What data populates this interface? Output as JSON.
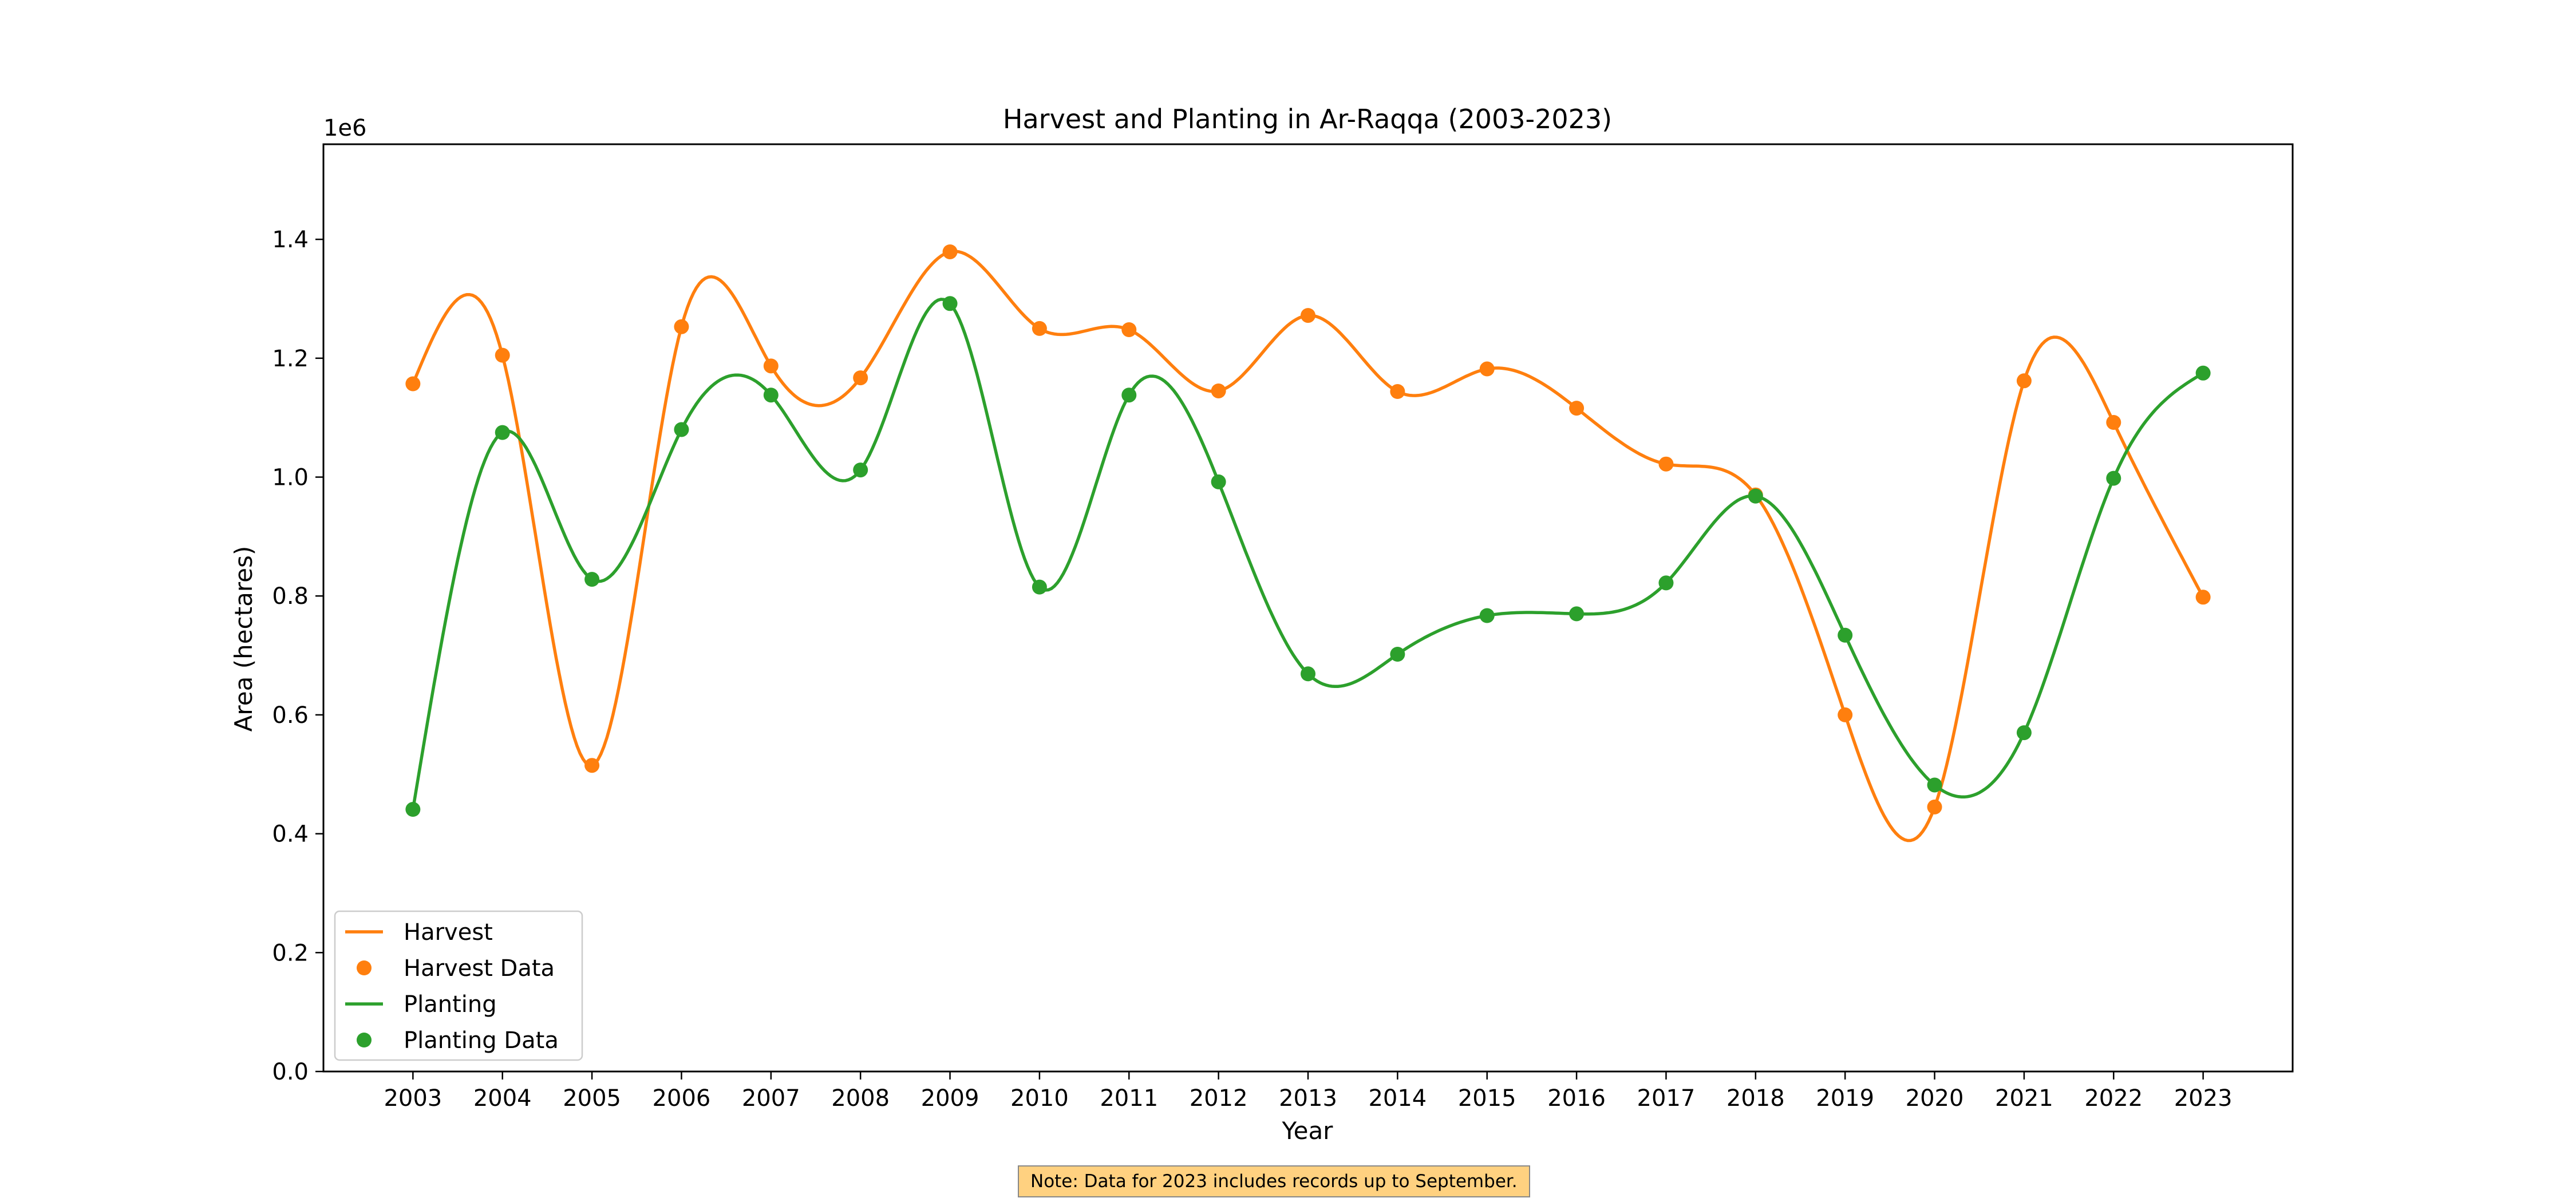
{
  "chart_data": {
    "type": "line",
    "title": "Harvest and Planting in Ar-Raqqa (2003-2023)",
    "xlabel": "Year",
    "ylabel": "Area (hectares)",
    "y_offset_label": "1e6",
    "x": [
      2003,
      2004,
      2005,
      2006,
      2007,
      2008,
      2009,
      2010,
      2011,
      2012,
      2013,
      2014,
      2015,
      2016,
      2017,
      2018,
      2019,
      2020,
      2021,
      2022,
      2023
    ],
    "x_tick_labels": [
      "2003",
      "2004",
      "2005",
      "2006",
      "2007",
      "2008",
      "2009",
      "2010",
      "2011",
      "2012",
      "2013",
      "2014",
      "2015",
      "2016",
      "2017",
      "2018",
      "2019",
      "2020",
      "2021",
      "2022",
      "2023"
    ],
    "y_ticks": [
      0.0,
      0.2,
      0.4,
      0.6,
      0.8,
      1.0,
      1.2,
      1.4
    ],
    "y_tick_labels": [
      "0.0",
      "0.2",
      "0.4",
      "0.6",
      "0.8",
      "1.0",
      "1.2",
      "1.4"
    ],
    "ylim": [
      0,
      1.56
    ],
    "xlim": [
      2002.0,
      2024.0
    ],
    "y_unit_multiplier": 1000000,
    "series": [
      {
        "name": "Harvest",
        "marker_name": "Harvest Data",
        "color": "#ff7f0e",
        "values": [
          1.157,
          1.205,
          0.515,
          1.253,
          1.187,
          1.167,
          1.379,
          1.25,
          1.248,
          1.145,
          1.272,
          1.144,
          1.182,
          1.116,
          1.022,
          0.97,
          0.6,
          0.445,
          1.162,
          1.092,
          0.798
        ]
      },
      {
        "name": "Planting",
        "marker_name": "Planting Data",
        "color": "#2ca02c",
        "values": [
          0.441,
          1.075,
          0.828,
          1.08,
          1.138,
          1.012,
          1.292,
          0.815,
          1.138,
          0.992,
          0.669,
          0.702,
          0.767,
          0.77,
          0.822,
          0.968,
          0.734,
          0.482,
          0.57,
          0.998,
          1.175
        ]
      }
    ],
    "legend": {
      "placement": "lower-left",
      "entries": [
        "Harvest",
        "Harvest Data",
        "Planting",
        "Planting Data"
      ]
    },
    "grid": false,
    "annotation": "Note: Data for 2023 includes records up to September."
  }
}
